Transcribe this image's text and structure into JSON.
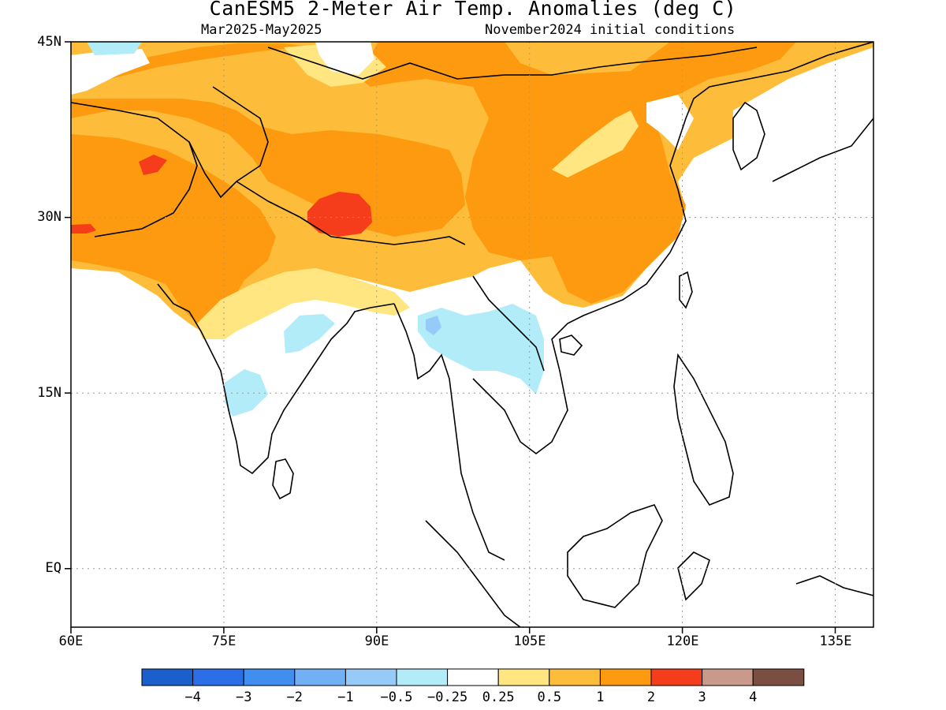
{
  "header": {
    "title": "CanESM5 2-Meter Air Temp. Anomalies (deg C)",
    "period": "Mar2025-May2025",
    "init": "November2024 initial conditions"
  },
  "map": {
    "lat_labels": [
      "45N",
      "30N",
      "15N",
      "EQ"
    ],
    "lon_labels": [
      "60E",
      "75E",
      "90E",
      "105E",
      "120E",
      "135E"
    ]
  },
  "colorbar": {
    "colors": [
      "#1a5fcc",
      "#2a6ee8",
      "#3f8ef0",
      "#72b0f5",
      "#96caf8",
      "#b3ecf9",
      "#ffffff",
      "#ffe680",
      "#fdbd3a",
      "#fd9a10",
      "#f53d1b",
      "#c99a8c",
      "#7a4e40"
    ],
    "labels": [
      "-4",
      "-3",
      "-2",
      "-1",
      "-0.5",
      "-0.25",
      "0.25",
      "0.5",
      "1",
      "2",
      "3",
      "4"
    ]
  }
}
